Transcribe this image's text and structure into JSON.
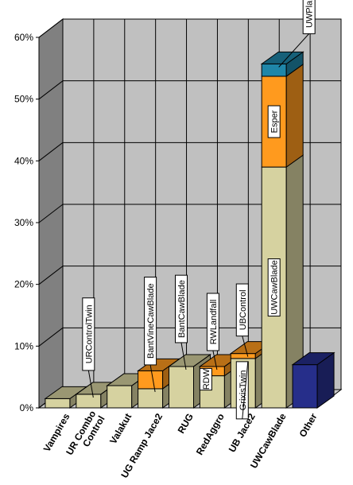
{
  "chart_data": {
    "type": "bar",
    "stacked": true,
    "three_d": true,
    "title": "",
    "xlabel": "",
    "ylabel": "",
    "ylim": [
      0,
      60
    ],
    "yticks": [
      "0%",
      "10%",
      "20%",
      "30%",
      "40%",
      "50%",
      "60%"
    ],
    "grid": true,
    "legend": "none",
    "colors": {
      "tan": "#d6d2a0",
      "orange": "#ff9a1e",
      "teal": "#1f86a8",
      "navy": "#262e8a",
      "wall": "#c0c0c0",
      "side_wall": "#808080",
      "floor": "#c8c8c8"
    },
    "categories": [
      "Vampires",
      "UR Combo Control",
      "Valakut",
      "UG Ramp Jace2",
      "RUG",
      "RedAggro",
      "UB Jace2",
      "UWCawBlade",
      "Other"
    ],
    "bars": [
      {
        "category": "Vampires",
        "segments": [
          {
            "value": 1.5,
            "color": "tan",
            "label": ""
          }
        ]
      },
      {
        "category": "UR Combo Control",
        "segments": [
          {
            "value": 2.2,
            "color": "tan",
            "label": "URControlTwin"
          }
        ]
      },
      {
        "category": "Valakut",
        "segments": [
          {
            "value": 3.6,
            "color": "tan",
            "label": ""
          }
        ]
      },
      {
        "category": "UG Ramp Jace2",
        "segments": [
          {
            "value": 3.1,
            "color": "tan",
            "label": "BantVineCawBlade"
          },
          {
            "value": 2.9,
            "color": "orange",
            "label": ""
          }
        ]
      },
      {
        "category": "RUG",
        "segments": [
          {
            "value": 6.7,
            "color": "tan",
            "label": "BantCawBlade"
          }
        ]
      },
      {
        "category": "RedAggro",
        "segments": [
          {
            "value": 5.2,
            "color": "tan",
            "label": "RDW"
          },
          {
            "value": 1.5,
            "color": "orange",
            "label": "RWLandfall"
          }
        ]
      },
      {
        "category": "UB Jace2",
        "segments": [
          {
            "value": 8.0,
            "color": "tan",
            "label": "GrixisTwin"
          },
          {
            "value": 0.8,
            "color": "orange",
            "label": "UBControl"
          }
        ]
      },
      {
        "category": "UWCawBlade",
        "segments": [
          {
            "value": 39.0,
            "color": "tan",
            "label": "UWCawBlade"
          },
          {
            "value": 14.7,
            "color": "orange",
            "label": "Esper"
          },
          {
            "value": 2.0,
            "color": "teal",
            "label": "UWPlaneswalkers"
          }
        ]
      },
      {
        "category": "Other",
        "segments": [
          {
            "value": 7.0,
            "color": "navy",
            "label": ""
          }
        ]
      }
    ]
  }
}
